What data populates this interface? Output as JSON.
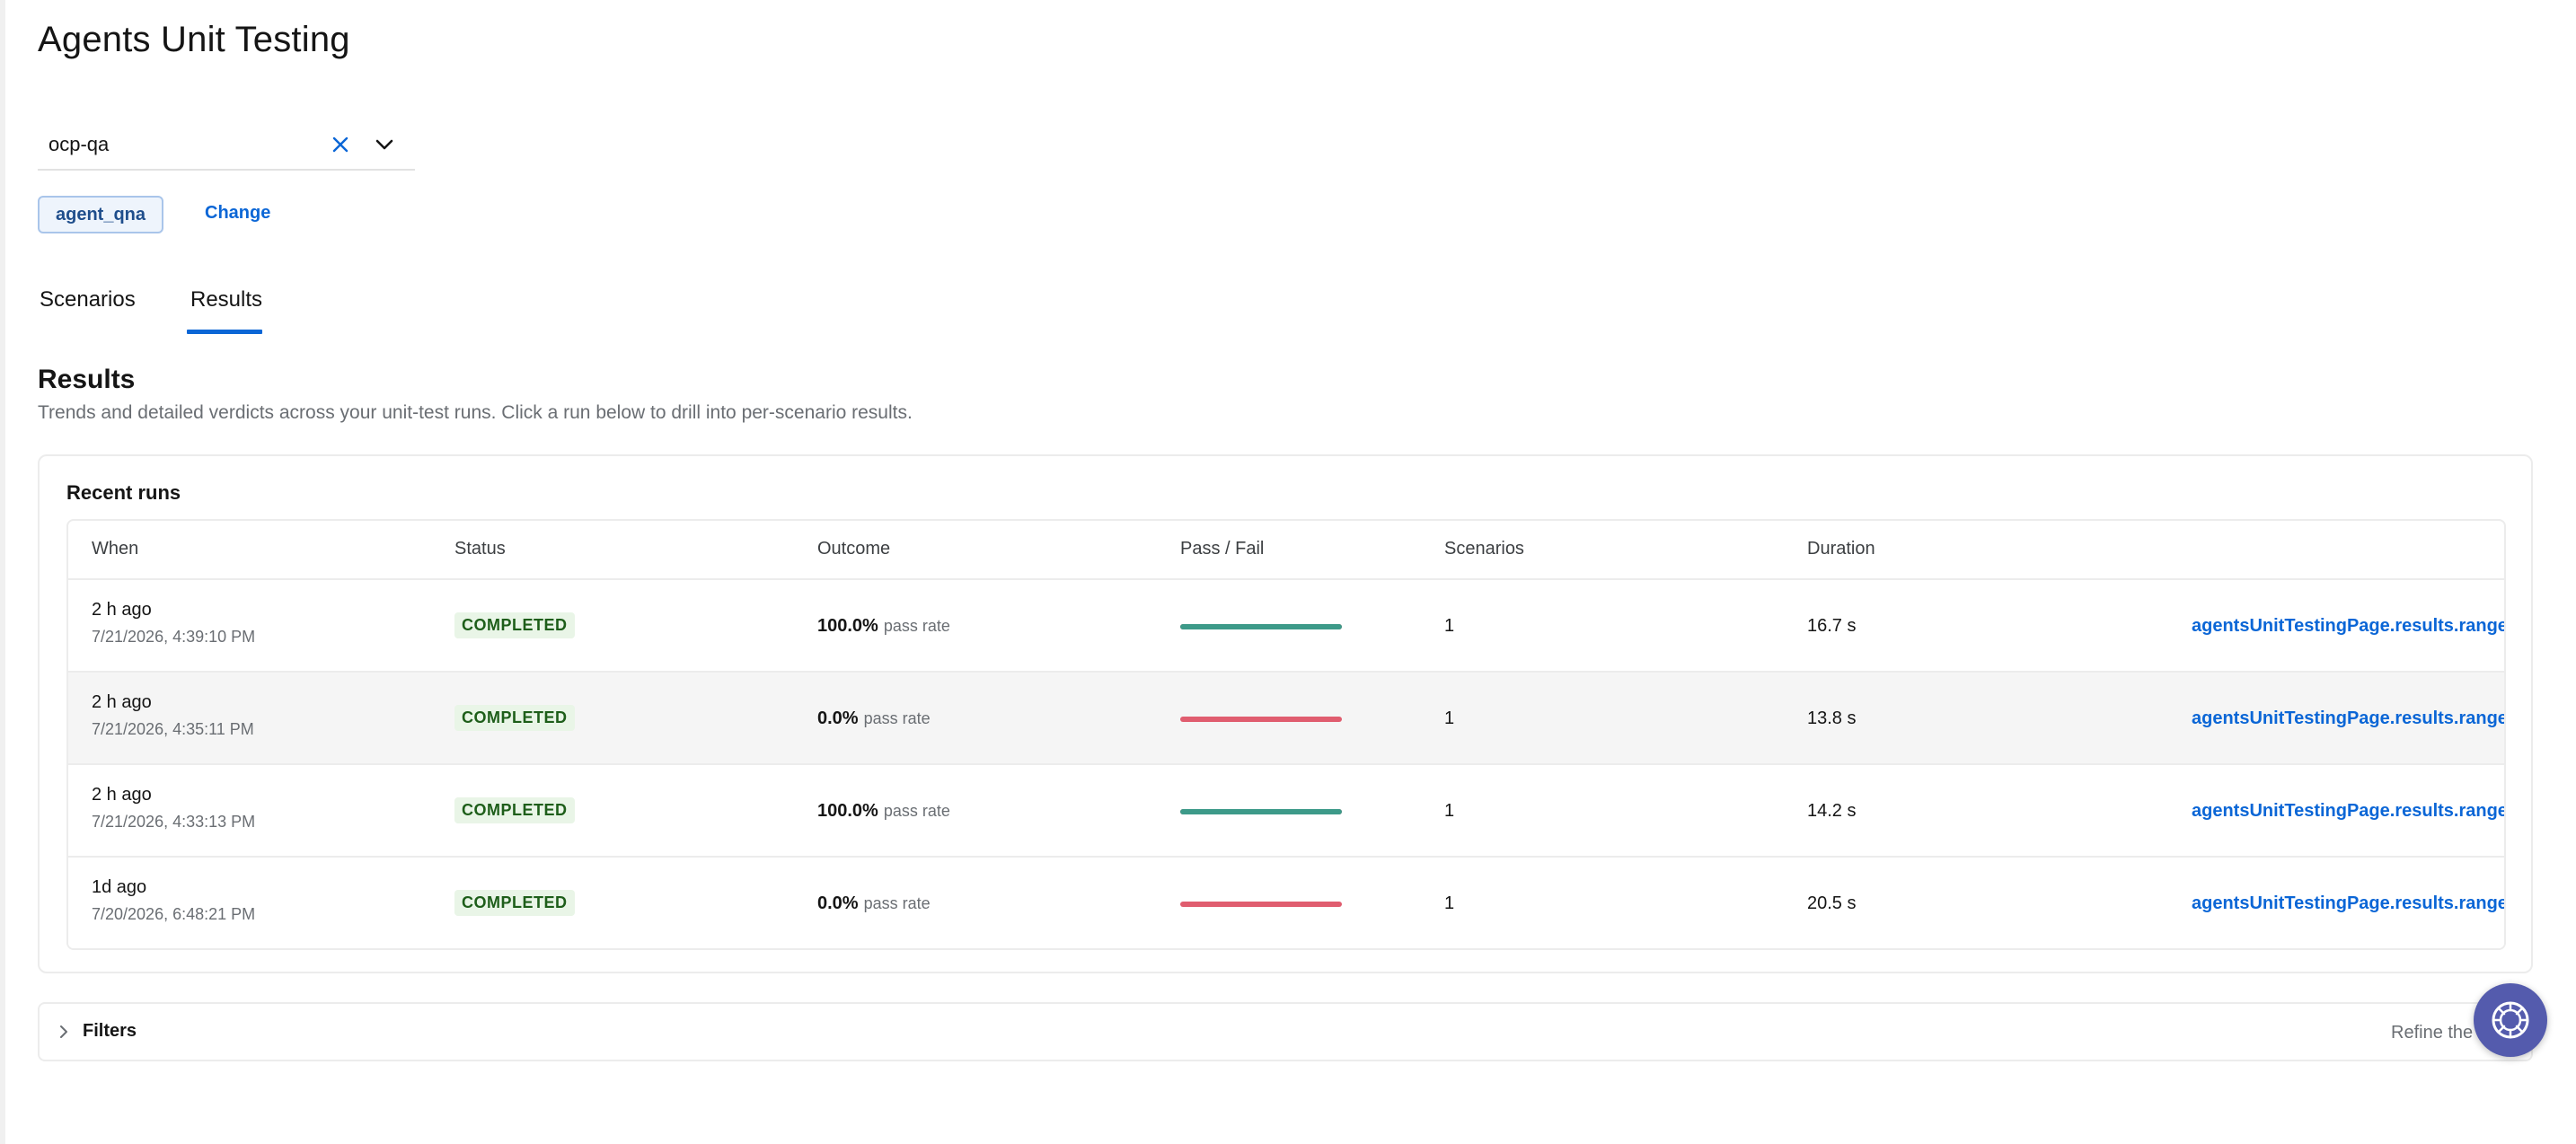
{
  "page": {
    "title": "Agents Unit Testing"
  },
  "project_select": {
    "value": "ocp-qa",
    "clear_icon": "close-icon",
    "toggle_icon": "chevron-down-icon"
  },
  "agent": {
    "name": "agent_qna",
    "change_label": "Change"
  },
  "tabs": [
    {
      "label": "Scenarios",
      "active": false
    },
    {
      "label": "Results",
      "active": true
    }
  ],
  "results": {
    "title": "Results",
    "description": "Trends and detailed verdicts across your unit-test runs. Click a run below to drill into per-scenario results."
  },
  "recent_runs": {
    "title": "Recent runs",
    "columns": [
      "When",
      "Status",
      "Outcome",
      "Pass / Fail",
      "Scenarios",
      "Duration"
    ],
    "pass_rate_label": "pass rate",
    "rows": [
      {
        "when": "2 h ago",
        "timestamp": "7/21/2026, 4:39:10 PM",
        "status": "COMPLETED",
        "pass_rate": "100.0%",
        "pass_fraction": 1.0,
        "scenarios": "1",
        "duration": "16.7 s",
        "link": "agentsUnitTestingPage.results.range.n"
      },
      {
        "when": "2 h ago",
        "timestamp": "7/21/2026, 4:35:11 PM",
        "status": "COMPLETED",
        "pass_rate": "0.0%",
        "pass_fraction": 0.0,
        "scenarios": "1",
        "duration": "13.8 s",
        "link": "agentsUnitTestingPage.results.range.n"
      },
      {
        "when": "2 h ago",
        "timestamp": "7/21/2026, 4:33:13 PM",
        "status": "COMPLETED",
        "pass_rate": "100.0%",
        "pass_fraction": 1.0,
        "scenarios": "1",
        "duration": "14.2 s",
        "link": "agentsUnitTestingPage.results.range.n"
      },
      {
        "when": "1d ago",
        "timestamp": "7/20/2026, 6:48:21 PM",
        "status": "COMPLETED",
        "pass_rate": "0.0%",
        "pass_fraction": 0.0,
        "scenarios": "1",
        "duration": "20.5 s",
        "link": "agentsUnitTestingPage.results.range.n"
      }
    ]
  },
  "filters": {
    "label": "Filters",
    "hint": "Refine the",
    "chevron_icon": "chevron-right-icon"
  },
  "assistant": {
    "icon": "assistant-icon"
  },
  "colors": {
    "accent": "#0b66d6",
    "pass": "#3d9a89",
    "fail": "#e05d6f",
    "status_bg": "#e9f5e7",
    "status_text": "#1e5e1a",
    "fab": "#545bad"
  }
}
